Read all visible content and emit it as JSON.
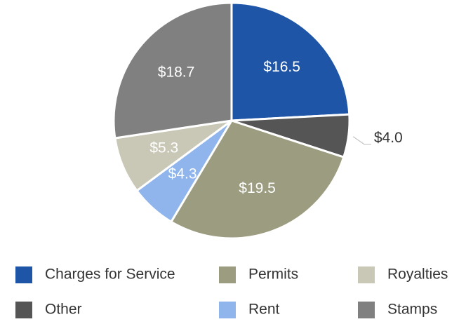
{
  "chart_data": {
    "type": "pie",
    "categories": [
      "Charges for Service",
      "Other",
      "Permits",
      "Rent",
      "Royalties",
      "Stamps"
    ],
    "values": [
      16.5,
      4.0,
      19.5,
      4.3,
      5.3,
      18.7
    ],
    "value_labels": [
      "$16.5",
      "$4.0",
      "$19.5",
      "$4.3",
      "$5.3",
      "$18.7"
    ],
    "colors": [
      "#1f55a6",
      "#555555",
      "#9c9c80",
      "#8fb5ec",
      "#c9c7b6",
      "#808080"
    ],
    "legend": "bottom"
  }
}
